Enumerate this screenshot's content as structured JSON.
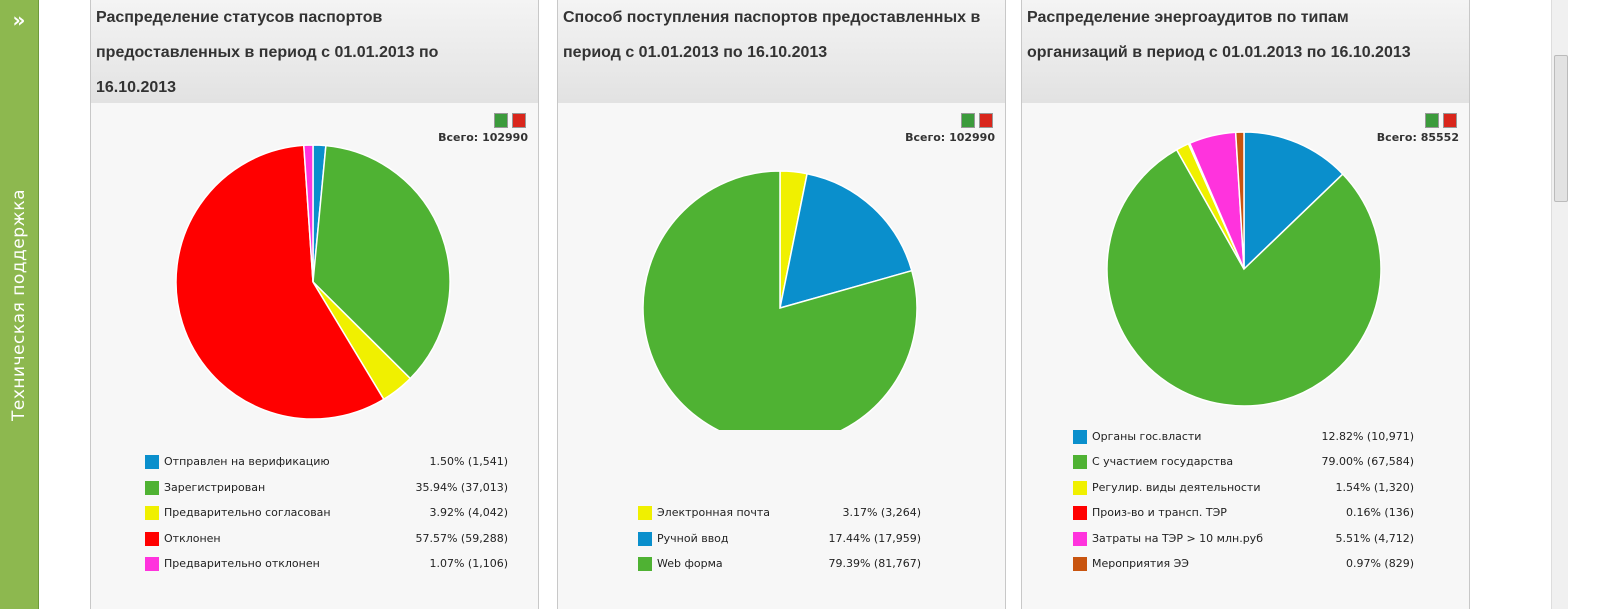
{
  "sidebar": {
    "toggle": "»",
    "label": "Техническая поддержка"
  },
  "chart_data": [
    {
      "type": "pie",
      "title": "Распределение статусов паспортов предоставленных в период с 01.01.2013 по 16.10.2013",
      "total_label": "Всего:",
      "total": 102990,
      "categories": [
        "Отправлен на верификацию",
        "Зарегистрирован",
        "Предварительно согласован",
        "Отклонен",
        "Предварительно отклонен"
      ],
      "values": [
        1.5,
        35.94,
        3.92,
        57.57,
        1.07
      ],
      "value_labels": [
        "1.50% (1,541)",
        "35.94% (37,013)",
        "3.92% (4,042)",
        "57.57% (59,288)",
        "1.07% (1,106)"
      ],
      "colors": [
        "#0a8fcc",
        "#4fb233",
        "#f0f000",
        "#ff0000",
        "#ff33dd"
      ]
    },
    {
      "type": "pie",
      "title": "Способ поступления паспортов предоставленных в период с 01.01.2013 по 16.10.2013",
      "total_label": "Всего:",
      "total": 102990,
      "categories": [
        "Электронная почта",
        "Ручной ввод",
        "Web форма"
      ],
      "values": [
        3.17,
        17.44,
        79.39
      ],
      "value_labels": [
        "3.17% (3,264)",
        "17.44% (17,959)",
        "79.39% (81,767)"
      ],
      "colors": [
        "#f0f000",
        "#0a8fcc",
        "#4fb233"
      ]
    },
    {
      "type": "pie",
      "title": "Распределение энергоаудитов по типам организаций в период с 01.01.2013 по 16.10.2013",
      "total_label": "Всего:",
      "total": 85552,
      "categories": [
        "Органы гос.власти",
        "С участием государства",
        "Регулир. виды деятельности",
        "Произ-во и трансп. ТЭР",
        "Затраты на ТЭР > 10 млн.руб",
        "Мероприятия ЭЭ"
      ],
      "values": [
        12.82,
        79.0,
        1.54,
        0.16,
        5.51,
        0.97
      ],
      "value_labels": [
        "12.82% (10,971)",
        "79.00% (67,584)",
        "1.54% (1,320)",
        "0.16% (136)",
        "5.51% (4,712)",
        "0.97% (829)"
      ],
      "colors": [
        "#0a8fcc",
        "#4fb233",
        "#f0f000",
        "#ff0000",
        "#ff33dd",
        "#c8540f"
      ]
    }
  ]
}
